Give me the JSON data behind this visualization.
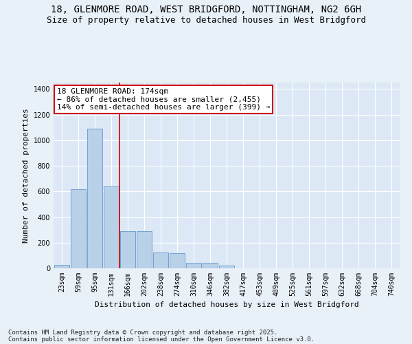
{
  "title_line1": "18, GLENMORE ROAD, WEST BRIDGFORD, NOTTINGHAM, NG2 6GH",
  "title_line2": "Size of property relative to detached houses in West Bridgford",
  "xlabel": "Distribution of detached houses by size in West Bridgford",
  "ylabel": "Number of detached properties",
  "categories": [
    "23sqm",
    "59sqm",
    "95sqm",
    "131sqm",
    "166sqm",
    "202sqm",
    "238sqm",
    "274sqm",
    "310sqm",
    "346sqm",
    "382sqm",
    "417sqm",
    "453sqm",
    "489sqm",
    "525sqm",
    "561sqm",
    "597sqm",
    "632sqm",
    "668sqm",
    "704sqm",
    "740sqm"
  ],
  "values": [
    25,
    620,
    1090,
    640,
    290,
    290,
    125,
    120,
    45,
    45,
    20,
    0,
    0,
    0,
    0,
    0,
    0,
    0,
    0,
    0,
    0
  ],
  "bar_color": "#b8d0e8",
  "bar_edge_color": "#6699cc",
  "vline_color": "#cc0000",
  "vline_x_index": 4,
  "annotation_title": "18 GLENMORE ROAD: 174sqm",
  "annotation_line1": "← 86% of detached houses are smaller (2,455)",
  "annotation_line2": "14% of semi-detached houses are larger (399) →",
  "annotation_box_edgecolor": "#cc0000",
  "ylim": [
    0,
    1450
  ],
  "yticks": [
    0,
    200,
    400,
    600,
    800,
    1000,
    1200,
    1400
  ],
  "bg_color": "#e8f0f8",
  "plot_bg_color": "#dce8f5",
  "footer_line1": "Contains HM Land Registry data © Crown copyright and database right 2025.",
  "footer_line2": "Contains public sector information licensed under the Open Government Licence v3.0.",
  "title_fontsize": 10,
  "subtitle_fontsize": 9,
  "axis_label_fontsize": 8,
  "tick_fontsize": 7,
  "annotation_fontsize": 8,
  "footer_fontsize": 6.5
}
